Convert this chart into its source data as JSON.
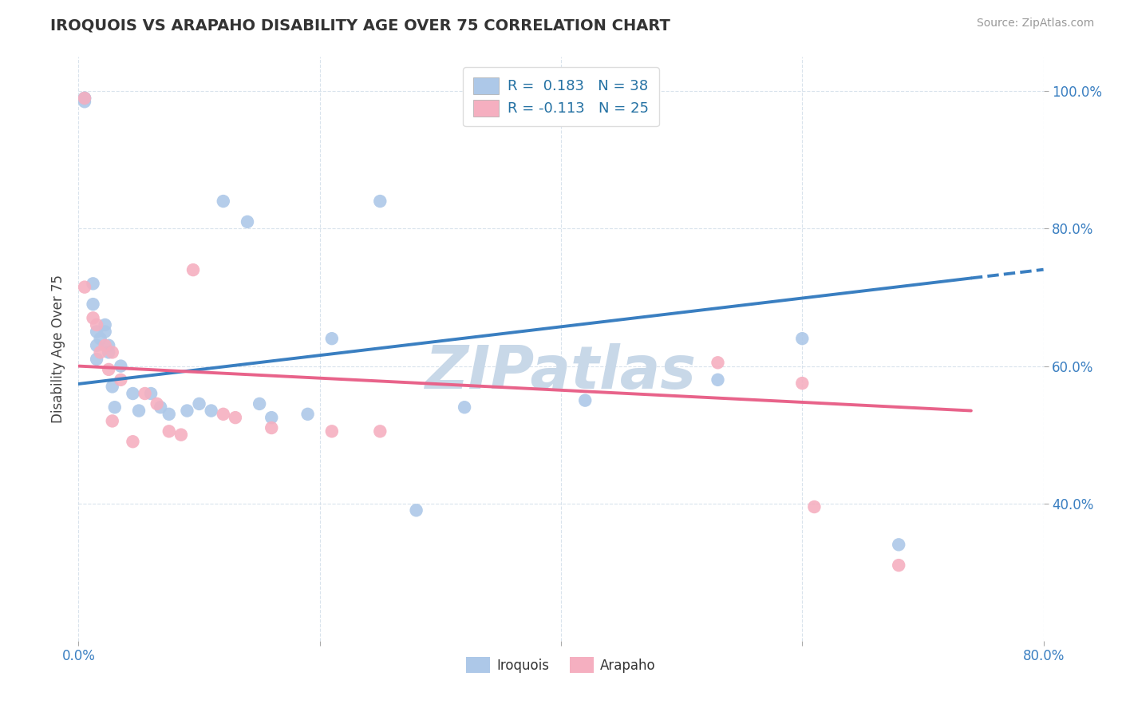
{
  "title": "IROQUOIS VS ARAPAHO DISABILITY AGE OVER 75 CORRELATION CHART",
  "source": "Source: ZipAtlas.com",
  "ylabel": "Disability Age Over 75",
  "xlim": [
    0.0,
    0.8
  ],
  "ylim": [
    0.2,
    1.05
  ],
  "xticks": [
    0.0,
    0.2,
    0.4,
    0.6,
    0.8
  ],
  "xticklabels": [
    "0.0%",
    "",
    "",
    "",
    "80.0%"
  ],
  "yticks": [
    0.4,
    0.6,
    0.8,
    1.0
  ],
  "yticklabels": [
    "40.0%",
    "60.0%",
    "80.0%",
    "100.0%"
  ],
  "iroquois_R": 0.183,
  "iroquois_N": 38,
  "arapaho_R": -0.113,
  "arapaho_N": 25,
  "iroquois_color": "#adc8e8",
  "arapaho_color": "#f5afc0",
  "iroquois_line_color": "#3a7fc1",
  "arapaho_line_color": "#e8638a",
  "watermark": "ZIPatlas",
  "watermark_color": "#c8d8e8",
  "iroquois_line_x0": 0.0,
  "iroquois_line_y0": 0.574,
  "iroquois_line_x1": 0.74,
  "iroquois_line_y1": 0.728,
  "arapaho_line_x0": 0.0,
  "arapaho_line_y0": 0.6,
  "arapaho_line_x1": 0.74,
  "arapaho_line_y1": 0.535,
  "iroquois_x": [
    0.005,
    0.005,
    0.005,
    0.005,
    0.012,
    0.012,
    0.015,
    0.015,
    0.015,
    0.018,
    0.022,
    0.022,
    0.025,
    0.025,
    0.028,
    0.03,
    0.035,
    0.045,
    0.05,
    0.06,
    0.068,
    0.075,
    0.09,
    0.1,
    0.11,
    0.12,
    0.14,
    0.15,
    0.16,
    0.19,
    0.21,
    0.25,
    0.28,
    0.32,
    0.42,
    0.53,
    0.6,
    0.68
  ],
  "iroquois_y": [
    0.99,
    0.985,
    0.99,
    0.99,
    0.72,
    0.69,
    0.65,
    0.63,
    0.61,
    0.64,
    0.66,
    0.65,
    0.63,
    0.62,
    0.57,
    0.54,
    0.6,
    0.56,
    0.535,
    0.56,
    0.54,
    0.53,
    0.535,
    0.545,
    0.535,
    0.84,
    0.81,
    0.545,
    0.525,
    0.53,
    0.64,
    0.84,
    0.39,
    0.54,
    0.55,
    0.58,
    0.64,
    0.34
  ],
  "arapaho_x": [
    0.005,
    0.005,
    0.012,
    0.015,
    0.018,
    0.022,
    0.025,
    0.028,
    0.028,
    0.035,
    0.045,
    0.055,
    0.065,
    0.075,
    0.085,
    0.095,
    0.12,
    0.13,
    0.16,
    0.21,
    0.25,
    0.53,
    0.6,
    0.61,
    0.68
  ],
  "arapaho_y": [
    0.99,
    0.715,
    0.67,
    0.66,
    0.62,
    0.63,
    0.595,
    0.62,
    0.52,
    0.58,
    0.49,
    0.56,
    0.545,
    0.505,
    0.5,
    0.74,
    0.53,
    0.525,
    0.51,
    0.505,
    0.505,
    0.605,
    0.575,
    0.395,
    0.31
  ]
}
